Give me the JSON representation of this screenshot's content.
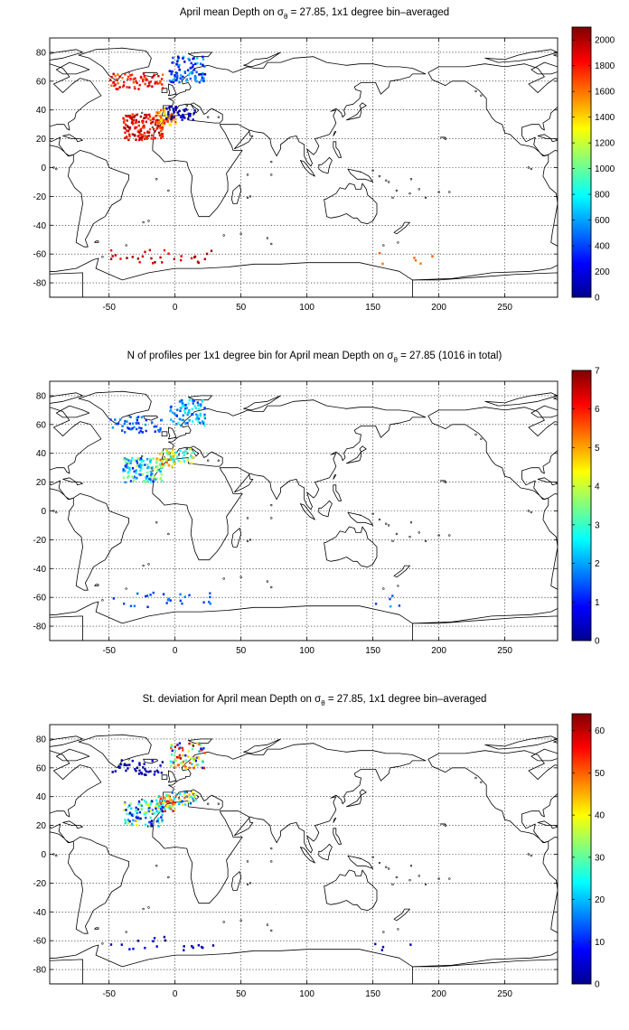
{
  "chart_data": [
    {
      "type": "heatmap",
      "title_parts": {
        "prefix": "April mean Depth on ",
        "sym": "σ",
        "sub": "θ",
        "suffix": " = 27.85, 1x1 degree bin–averaged"
      },
      "xlim": [
        -95,
        290
      ],
      "ylim": [
        -90,
        90
      ],
      "xticks": [
        -50,
        0,
        50,
        100,
        150,
        200,
        250
      ],
      "yticks": [
        -80,
        -60,
        -40,
        -20,
        0,
        20,
        40,
        60,
        80
      ],
      "grid": true,
      "colorbar": {
        "min": 0,
        "max": 2100,
        "ticks": [
          0,
          200,
          400,
          600,
          800,
          1000,
          1200,
          1400,
          1600,
          1800,
          2000
        ]
      },
      "clusters": [
        {
          "lon": [
            -50,
            -10
          ],
          "lat": [
            55,
            66
          ],
          "range": [
            1600,
            2000
          ],
          "n": 70
        },
        {
          "lon": [
            -5,
            22
          ],
          "lat": [
            60,
            78
          ],
          "range": [
            100,
            700
          ],
          "n": 90
        },
        {
          "lon": [
            -40,
            -10
          ],
          "lat": [
            20,
            38
          ],
          "range": [
            1650,
            2050
          ],
          "n": 140
        },
        {
          "lon": [
            -15,
            0
          ],
          "lat": [
            30,
            42
          ],
          "range": [
            1300,
            1800
          ],
          "n": 50
        },
        {
          "lon": [
            -8,
            15
          ],
          "lat": [
            34,
            44
          ],
          "range": [
            0,
            250
          ],
          "n": 40
        },
        {
          "lon": [
            -50,
            30
          ],
          "lat": [
            -66,
            -56
          ],
          "range": [
            1800,
            2100
          ],
          "n": 30
        },
        {
          "lon": [
            150,
            200
          ],
          "lat": [
            -66,
            -58
          ],
          "range": [
            1500,
            1800
          ],
          "n": 6
        }
      ]
    },
    {
      "type": "heatmap",
      "title_parts": {
        "prefix": "N of profiles per 1x1 degree bin for April mean Depth on ",
        "sym": "σ",
        "sub": "θ",
        "suffix": " = 27.85 (1016 in total)"
      },
      "xlim": [
        -95,
        290
      ],
      "ylim": [
        -90,
        90
      ],
      "xticks": [
        -50,
        0,
        50,
        100,
        150,
        200,
        250
      ],
      "yticks": [
        -80,
        -60,
        -40,
        -20,
        0,
        20,
        40,
        60,
        80
      ],
      "grid": true,
      "colorbar": {
        "min": 0,
        "max": 7,
        "ticks": [
          0,
          1,
          2,
          3,
          4,
          5,
          6,
          7
        ]
      },
      "clusters": [
        {
          "lon": [
            -50,
            -10
          ],
          "lat": [
            55,
            66
          ],
          "range": [
            1,
            2
          ],
          "n": 50
        },
        {
          "lon": [
            -5,
            22
          ],
          "lat": [
            60,
            78
          ],
          "range": [
            1,
            3
          ],
          "n": 80
        },
        {
          "lon": [
            -40,
            -10
          ],
          "lat": [
            20,
            38
          ],
          "range": [
            1,
            4
          ],
          "n": 120
        },
        {
          "lon": [
            -15,
            0
          ],
          "lat": [
            30,
            42
          ],
          "range": [
            3,
            6
          ],
          "n": 40
        },
        {
          "lon": [
            -8,
            15
          ],
          "lat": [
            34,
            44
          ],
          "range": [
            2,
            5
          ],
          "n": 35
        },
        {
          "lon": [
            -50,
            30
          ],
          "lat": [
            -66,
            -56
          ],
          "range": [
            1,
            2
          ],
          "n": 25
        },
        {
          "lon": [
            150,
            200
          ],
          "lat": [
            -66,
            -58
          ],
          "range": [
            1,
            2
          ],
          "n": 5
        }
      ]
    },
    {
      "type": "heatmap",
      "title_parts": {
        "prefix": "St. deviation for April mean Depth on ",
        "sym": "σ",
        "sub": "θ",
        "suffix": " = 27.85, 1x1 degree bin–averaged"
      },
      "xlim": [
        -95,
        290
      ],
      "ylim": [
        -90,
        90
      ],
      "xticks": [
        -50,
        0,
        50,
        100,
        150,
        200,
        250
      ],
      "yticks": [
        -80,
        -60,
        -40,
        -20,
        0,
        20,
        40,
        60,
        80
      ],
      "grid": true,
      "colorbar": {
        "min": 0,
        "max": 64,
        "ticks": [
          0,
          10,
          20,
          30,
          40,
          50,
          60
        ]
      },
      "clusters": [
        {
          "lon": [
            -50,
            -10
          ],
          "lat": [
            55,
            66
          ],
          "range": [
            0,
            5
          ],
          "n": 40
        },
        {
          "lon": [
            -5,
            22
          ],
          "lat": [
            60,
            78
          ],
          "range": [
            5,
            64
          ],
          "n": 80
        },
        {
          "lon": [
            -40,
            -10
          ],
          "lat": [
            20,
            38
          ],
          "range": [
            0,
            40
          ],
          "n": 100
        },
        {
          "lon": [
            -15,
            0
          ],
          "lat": [
            30,
            42
          ],
          "range": [
            20,
            60
          ],
          "n": 40
        },
        {
          "lon": [
            -8,
            15
          ],
          "lat": [
            34,
            44
          ],
          "range": [
            10,
            50
          ],
          "n": 35
        },
        {
          "lon": [
            -50,
            30
          ],
          "lat": [
            -66,
            -56
          ],
          "range": [
            0,
            8
          ],
          "n": 20
        },
        {
          "lon": [
            150,
            200
          ],
          "lat": [
            -66,
            -58
          ],
          "range": [
            0,
            5
          ],
          "n": 4
        }
      ]
    }
  ]
}
